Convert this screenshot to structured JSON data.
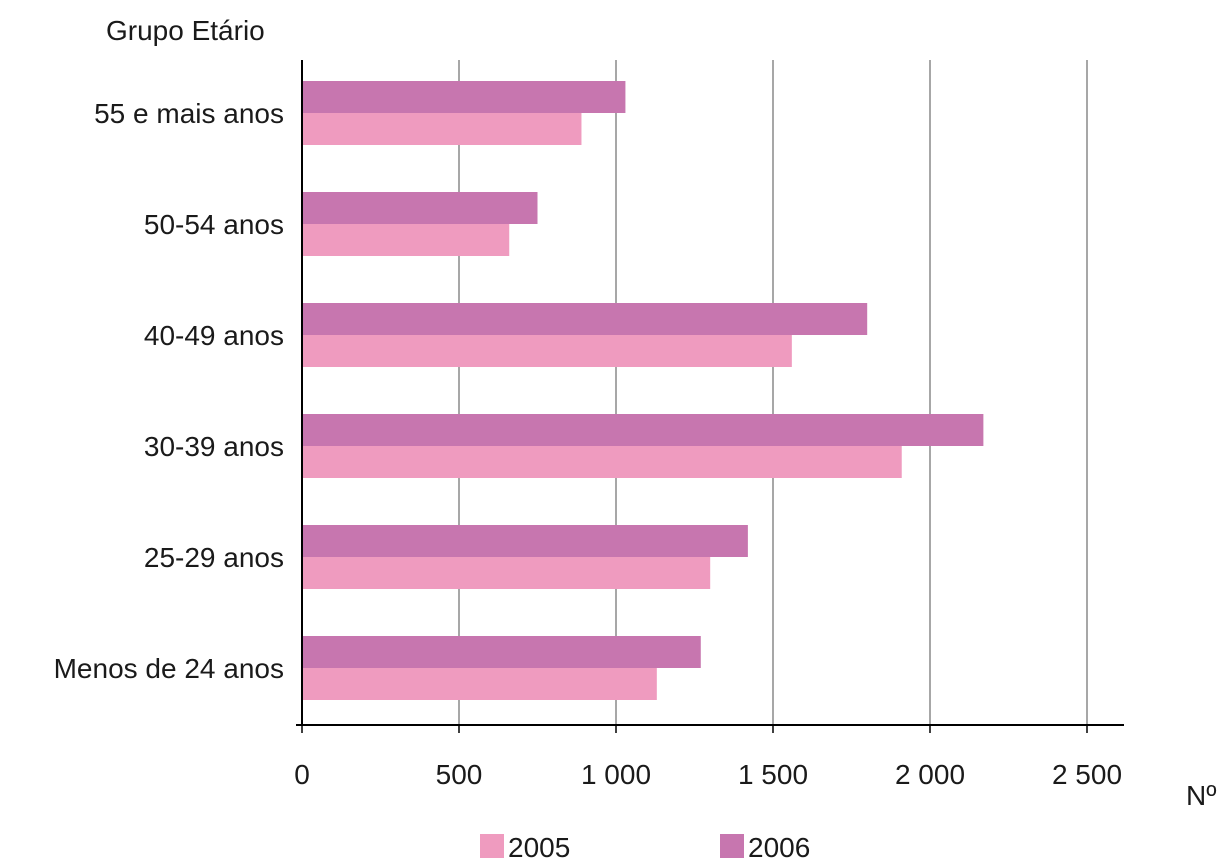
{
  "chart_data": {
    "type": "bar",
    "orientation": "horizontal",
    "ylabel": "Grupo Etário",
    "xlabel": "Nº",
    "categories": [
      "55 e mais anos",
      "50-54 anos",
      "40-49 anos",
      "30-39 anos",
      "25-29 anos",
      "Menos de 24 anos"
    ],
    "series": [
      {
        "name": "2005",
        "color": "#ef9bbf",
        "values": [
          890,
          660,
          1560,
          1910,
          1300,
          1130
        ]
      },
      {
        "name": "2006",
        "color": "#c776af",
        "values": [
          1030,
          750,
          1800,
          2170,
          1420,
          1270
        ]
      }
    ],
    "xlim": [
      0,
      2500
    ],
    "xticks": [
      0,
      500,
      1000,
      1500,
      2000,
      2500
    ],
    "xtick_labels": [
      "0",
      "500",
      "1 000",
      "1 500",
      "2 000",
      "2 500"
    ],
    "grid": "vertical",
    "legend_position": "bottom"
  }
}
